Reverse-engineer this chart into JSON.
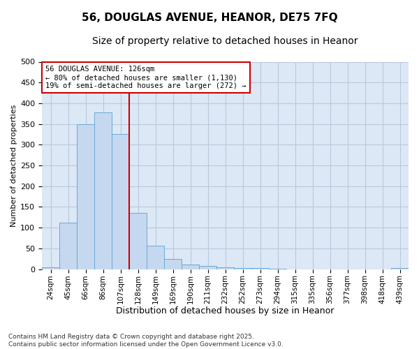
{
  "title_line1": "56, DOUGLAS AVENUE, HEANOR, DE75 7FQ",
  "title_line2": "Size of property relative to detached houses in Heanor",
  "xlabel": "Distribution of detached houses by size in Heanor",
  "ylabel": "Number of detached properties",
  "categories": [
    "24sqm",
    "45sqm",
    "66sqm",
    "86sqm",
    "107sqm",
    "128sqm",
    "149sqm",
    "169sqm",
    "190sqm",
    "211sqm",
    "232sqm",
    "252sqm",
    "273sqm",
    "294sqm",
    "315sqm",
    "335sqm",
    "356sqm",
    "377sqm",
    "398sqm",
    "418sqm",
    "439sqm"
  ],
  "values": [
    5,
    112,
    350,
    378,
    325,
    135,
    57,
    25,
    11,
    8,
    4,
    2,
    2,
    1,
    0,
    0,
    0,
    0,
    0,
    0,
    2
  ],
  "bar_color": "#c5d8ef",
  "bar_edge_color": "#6aaad4",
  "vline_color": "#cc0000",
  "annotation_text": "56 DOUGLAS AVENUE: 126sqm\n← 80% of detached houses are smaller (1,130)\n19% of semi-detached houses are larger (272) →",
  "annotation_box_color": "#ffffff",
  "annotation_box_edge": "#cc0000",
  "ylim": [
    0,
    500
  ],
  "yticks": [
    0,
    50,
    100,
    150,
    200,
    250,
    300,
    350,
    400,
    450,
    500
  ],
  "grid_color": "#b8c8dc",
  "background_color": "#ffffff",
  "plot_bg_color": "#dce8f5",
  "footer_text": "Contains HM Land Registry data © Crown copyright and database right 2025.\nContains public sector information licensed under the Open Government Licence v3.0.",
  "title1_fontsize": 11,
  "title2_fontsize": 10,
  "tick_fontsize": 7.5,
  "label_fontsize": 9,
  "footer_fontsize": 6.5
}
